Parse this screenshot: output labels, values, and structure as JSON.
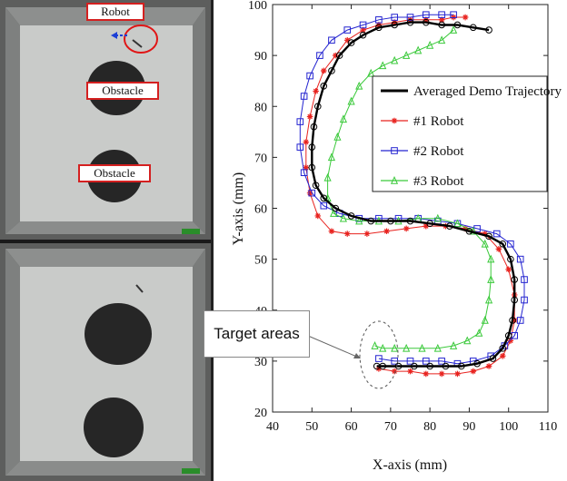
{
  "photos": {
    "top_labels": [
      "Robot",
      "Obstacle",
      "Obstacle"
    ]
  },
  "callout": "Target areas",
  "chart_data": {
    "type": "line",
    "title": "",
    "xlabel": "X-axis (mm)",
    "ylabel": "Y-axis (mm)",
    "xlim": [
      40,
      110
    ],
    "ylim": [
      20,
      100
    ],
    "xticks": [
      "40",
      "50",
      "60",
      "70",
      "80",
      "90",
      "100",
      "110"
    ],
    "yticks": [
      "20",
      "30",
      "40",
      "50",
      "60",
      "70",
      "80",
      "90",
      "100"
    ],
    "grid": false,
    "legend_placement": "center-right",
    "series": [
      {
        "name": "Averaged Demo Trajectory",
        "color": "#000000",
        "marker": "circle",
        "points": [
          [
            95,
            95
          ],
          [
            91,
            95.5
          ],
          [
            87,
            96
          ],
          [
            83,
            96
          ],
          [
            79,
            96.5
          ],
          [
            75,
            96.5
          ],
          [
            71,
            96
          ],
          [
            67,
            95.5
          ],
          [
            63,
            94
          ],
          [
            60,
            92.5
          ],
          [
            57,
            90
          ],
          [
            55,
            87
          ],
          [
            53,
            84
          ],
          [
            51.5,
            80
          ],
          [
            50.5,
            76
          ],
          [
            50,
            72
          ],
          [
            50,
            68
          ],
          [
            51,
            64.5
          ],
          [
            53,
            62
          ],
          [
            56,
            60
          ],
          [
            60,
            58.5
          ],
          [
            65,
            57.5
          ],
          [
            70,
            57.5
          ],
          [
            75,
            57.5
          ],
          [
            80,
            57
          ],
          [
            85,
            56.5
          ],
          [
            90,
            55.5
          ],
          [
            95,
            54.5
          ],
          [
            98.5,
            53
          ],
          [
            100.5,
            50
          ],
          [
            101.5,
            46
          ],
          [
            101.5,
            42
          ],
          [
            101,
            38
          ],
          [
            100,
            35
          ],
          [
            98.5,
            32.5
          ],
          [
            96,
            30.5
          ],
          [
            92,
            29.5
          ],
          [
            88,
            29
          ],
          [
            84,
            29
          ],
          [
            80,
            29
          ],
          [
            76,
            29
          ],
          [
            72,
            29
          ],
          [
            68,
            29
          ],
          [
            66.5,
            29
          ]
        ]
      },
      {
        "name": "#1 Robot",
        "color": "#e8231f",
        "marker": "star",
        "points": [
          [
            89,
            97.5
          ],
          [
            86,
            97.5
          ],
          [
            83,
            97
          ],
          [
            79,
            97
          ],
          [
            75,
            97
          ],
          [
            71,
            96.5
          ],
          [
            67,
            96
          ],
          [
            63,
            95
          ],
          [
            59,
            93
          ],
          [
            56,
            90
          ],
          [
            53,
            87
          ],
          [
            51,
            83
          ],
          [
            49.5,
            78
          ],
          [
            48.5,
            73
          ],
          [
            48.5,
            68
          ],
          [
            49.5,
            63
          ],
          [
            51.5,
            58.5
          ],
          [
            55,
            55.5
          ],
          [
            59,
            55
          ],
          [
            64,
            55
          ],
          [
            69,
            55.5
          ],
          [
            74,
            56
          ],
          [
            79,
            56.5
          ],
          [
            84,
            56.5
          ],
          [
            89,
            56
          ],
          [
            94,
            55
          ],
          [
            97.5,
            52
          ],
          [
            100,
            48
          ],
          [
            101.5,
            43
          ],
          [
            101.5,
            38
          ],
          [
            100.5,
            34
          ],
          [
            98.5,
            31
          ],
          [
            95,
            29
          ],
          [
            91,
            28
          ],
          [
            87,
            27.5
          ],
          [
            83,
            27.5
          ],
          [
            79,
            27.5
          ],
          [
            75,
            28
          ],
          [
            71,
            28
          ],
          [
            67,
            28.5
          ]
        ]
      },
      {
        "name": "#2 Robot",
        "color": "#2424d0",
        "marker": "square",
        "points": [
          [
            86,
            98
          ],
          [
            83,
            98
          ],
          [
            79,
            98
          ],
          [
            75,
            97.5
          ],
          [
            71,
            97.5
          ],
          [
            67,
            97
          ],
          [
            63,
            96
          ],
          [
            59,
            95
          ],
          [
            55,
            93
          ],
          [
            52,
            90
          ],
          [
            49.5,
            86
          ],
          [
            48,
            82
          ],
          [
            47,
            77
          ],
          [
            47,
            72
          ],
          [
            48,
            67
          ],
          [
            50,
            63
          ],
          [
            53,
            60.5
          ],
          [
            57,
            59
          ],
          [
            62,
            58
          ],
          [
            67,
            58
          ],
          [
            72,
            58
          ],
          [
            77,
            58
          ],
          [
            82,
            57.5
          ],
          [
            87,
            57
          ],
          [
            92,
            56
          ],
          [
            97,
            55
          ],
          [
            100.5,
            53
          ],
          [
            103,
            50
          ],
          [
            104,
            46
          ],
          [
            104,
            42
          ],
          [
            103,
            38
          ],
          [
            101.5,
            35
          ],
          [
            99,
            33
          ],
          [
            95.5,
            31
          ],
          [
            91,
            30
          ],
          [
            87,
            29.5
          ],
          [
            83,
            30
          ],
          [
            79,
            30
          ],
          [
            75,
            30
          ],
          [
            71,
            30
          ],
          [
            67,
            30.5
          ]
        ]
      },
      {
        "name": "#3 Robot",
        "color": "#3ac93a",
        "marker": "triangle",
        "points": [
          [
            86,
            95
          ],
          [
            83,
            93
          ],
          [
            80,
            92
          ],
          [
            77,
            91
          ],
          [
            74,
            90
          ],
          [
            71,
            89
          ],
          [
            68,
            88
          ],
          [
            65,
            86.5
          ],
          [
            62,
            84
          ],
          [
            60,
            81
          ],
          [
            58,
            77.5
          ],
          [
            56.5,
            74
          ],
          [
            55,
            70
          ],
          [
            54,
            66
          ],
          [
            54,
            62
          ],
          [
            55.5,
            59
          ],
          [
            58,
            58
          ],
          [
            62,
            57.5
          ],
          [
            67,
            57.5
          ],
          [
            72,
            57.5
          ],
          [
            77,
            58
          ],
          [
            82,
            58
          ],
          [
            87,
            57
          ],
          [
            91,
            55.5
          ],
          [
            94,
            53
          ],
          [
            95.5,
            50
          ],
          [
            95.5,
            46
          ],
          [
            95,
            42
          ],
          [
            94,
            38
          ],
          [
            92.5,
            35.5
          ],
          [
            89.5,
            34
          ],
          [
            86,
            33
          ],
          [
            82,
            32.5
          ],
          [
            78,
            32.5
          ],
          [
            74,
            32.5
          ],
          [
            71,
            32.5
          ],
          [
            68,
            32.5
          ],
          [
            66,
            33
          ]
        ]
      }
    ]
  }
}
